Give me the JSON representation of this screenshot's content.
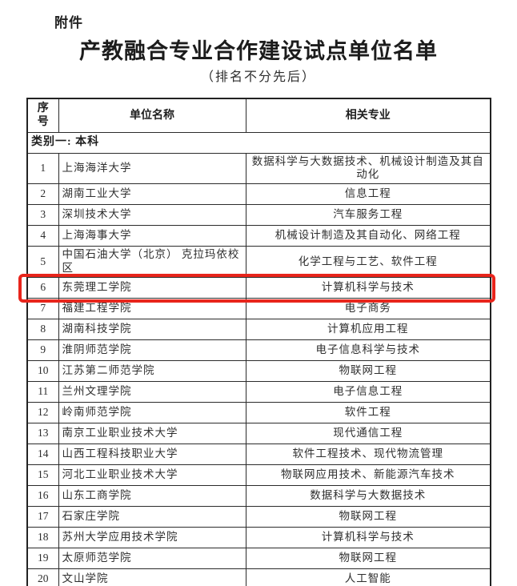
{
  "page": {
    "attachment_label": "附件",
    "title": "产教融合专业合作建设试点单位名单",
    "subtitle": "（排名不分先后）"
  },
  "table": {
    "headers": {
      "index": "序\n号",
      "unit": "单位名称",
      "major": "相关专业"
    },
    "category_row": "类别一: 本科",
    "highlight_color": "#e8251c",
    "rows": [
      {
        "no": "1",
        "unit": "上海海洋大学",
        "major": "数据科学与大数据技术、机械设计制造及其自动化",
        "highlight": false
      },
      {
        "no": "2",
        "unit": "湖南工业大学",
        "major": "信息工程",
        "highlight": false
      },
      {
        "no": "3",
        "unit": "深圳技术大学",
        "major": "汽车服务工程",
        "highlight": false
      },
      {
        "no": "4",
        "unit": "上海海事大学",
        "major": "机械设计制造及其自动化、网络工程",
        "highlight": false
      },
      {
        "no": "5",
        "unit": "中国石油大学（北京） 克拉玛依校区",
        "major": "化学工程与工艺、软件工程",
        "highlight": false
      },
      {
        "no": "6",
        "unit": "东莞理工学院",
        "major": "计算机科学与技术",
        "highlight": true
      },
      {
        "no": "7",
        "unit": "福建工程学院",
        "major": "电子商务",
        "highlight": false
      },
      {
        "no": "8",
        "unit": "湖南科技学院",
        "major": "计算机应用工程",
        "highlight": false
      },
      {
        "no": "9",
        "unit": "淮阴师范学院",
        "major": "电子信息科学与技术",
        "highlight": false
      },
      {
        "no": "10",
        "unit": "江苏第二师范学院",
        "major": "物联网工程",
        "highlight": false
      },
      {
        "no": "11",
        "unit": "兰州文理学院",
        "major": "电子信息工程",
        "highlight": false
      },
      {
        "no": "12",
        "unit": "岭南师范学院",
        "major": "软件工程",
        "highlight": false
      },
      {
        "no": "13",
        "unit": "南京工业职业技术大学",
        "major": "现代通信工程",
        "highlight": false
      },
      {
        "no": "14",
        "unit": "山西工程科技职业大学",
        "major": "软件工程技术、现代物流管理",
        "highlight": false
      },
      {
        "no": "15",
        "unit": "河北工业职业技术大学",
        "major": "物联网应用技术、新能源汽车技术",
        "highlight": false
      },
      {
        "no": "16",
        "unit": "山东工商学院",
        "major": "数据科学与大数据技术",
        "highlight": false
      },
      {
        "no": "17",
        "unit": "石家庄学院",
        "major": "物联网工程",
        "highlight": false
      },
      {
        "no": "18",
        "unit": "苏州大学应用技术学院",
        "major": "计算机科学与技术",
        "highlight": false
      },
      {
        "no": "19",
        "unit": "太原师范学院",
        "major": "物联网工程",
        "highlight": false
      },
      {
        "no": "20",
        "unit": "文山学院",
        "major": "人工智能",
        "highlight": false
      }
    ]
  }
}
